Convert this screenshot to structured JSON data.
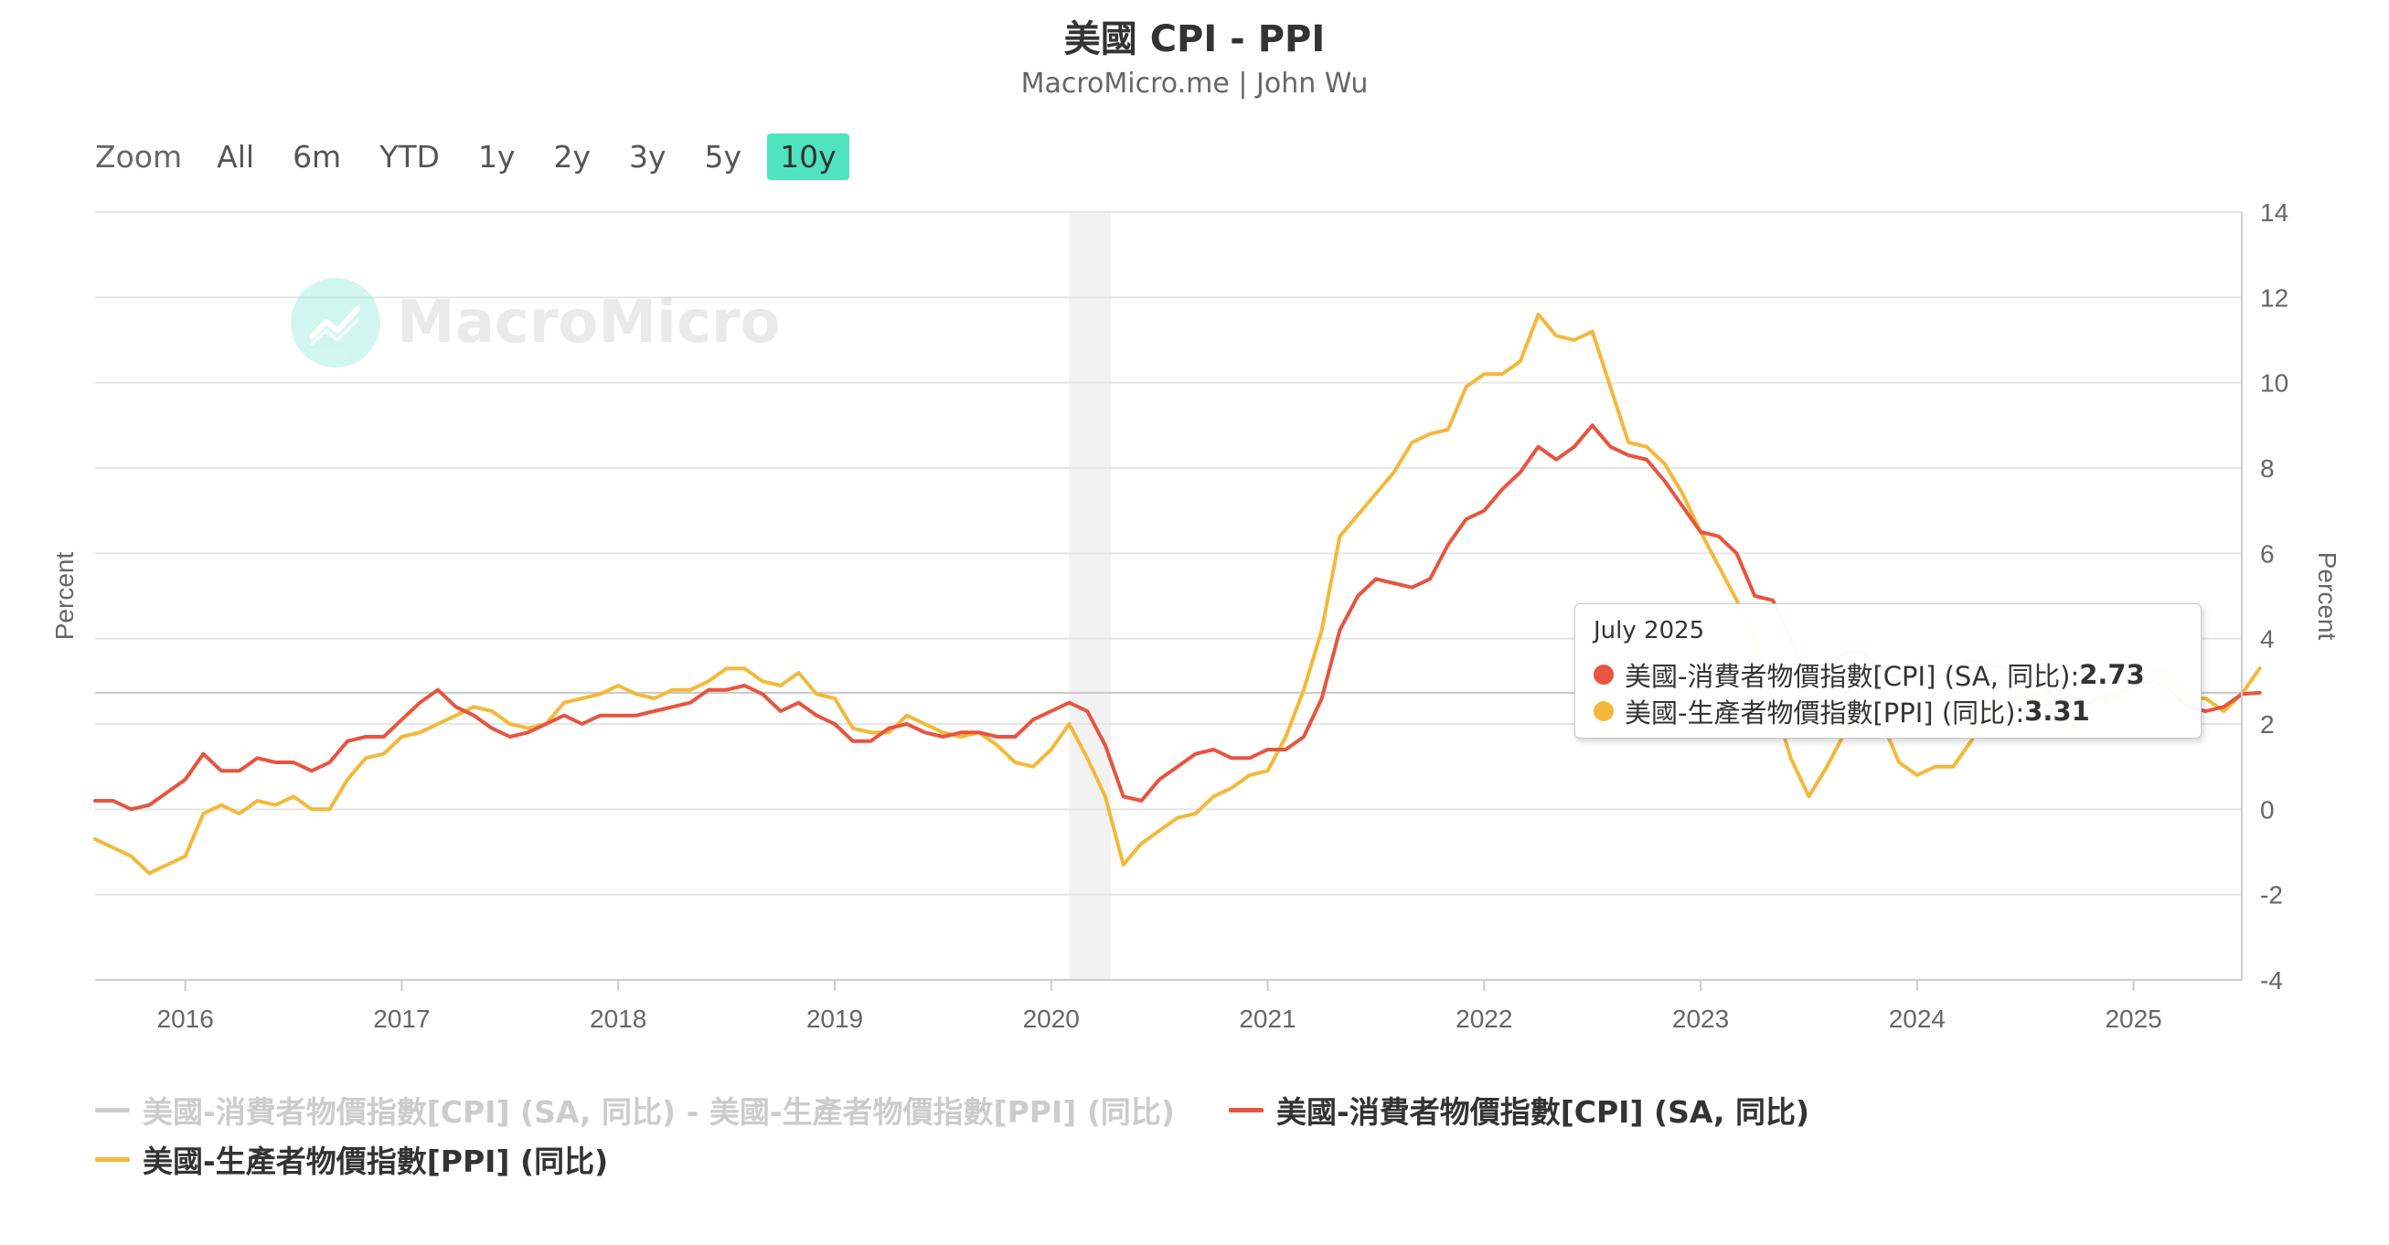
{
  "title": "美國 CPI - PPI",
  "subtitle": "MacroMicro.me | John Wu",
  "zoom": {
    "label": "Zoom",
    "buttons": [
      "All",
      "6m",
      "YTD",
      "1y",
      "2y",
      "3y",
      "5y",
      "10y"
    ],
    "active": "10y"
  },
  "watermark": "MacroMicro",
  "colors": {
    "cpi": "#e8543e",
    "ppi": "#f4b83a",
    "spread": "#cccccc",
    "recession": "#f2f2f2",
    "grid": "#e6e6e6"
  },
  "tooltip": {
    "date": "July 2025",
    "rows": [
      {
        "label": "美國-消費者物價指數[CPI] (SA, 同比): ",
        "value": "2.73",
        "color": "#e8543e"
      },
      {
        "label": "美國-生產者物價指數[PPI] (同比): ",
        "value": "3.31",
        "color": "#f4b83a"
      }
    ]
  },
  "legend": [
    {
      "label": "美國-消費者物價指數[CPI] (SA, 同比) - 美國-生產者物價指數[PPI] (同比)",
      "color": "#cccccc",
      "hidden": true
    },
    {
      "label": "美國-消費者物價指數[CPI] (SA, 同比)",
      "color": "#e8543e",
      "hidden": false
    },
    {
      "label": "美國-生產者物價指數[PPI] (同比)",
      "color": "#f4b83a",
      "hidden": false
    }
  ],
  "chart_data": {
    "type": "line",
    "title": "美國 CPI - PPI",
    "ylabel_left": "Percent",
    "ylabel_right": "Percent",
    "ylim": [
      -4,
      14
    ],
    "yticks": [
      -4,
      -2,
      0,
      2,
      4,
      6,
      8,
      10,
      12,
      14
    ],
    "xlim": [
      "2015-08",
      "2025-07"
    ],
    "xticks": [
      "2016",
      "2017",
      "2018",
      "2019",
      "2020",
      "2021",
      "2022",
      "2023",
      "2024",
      "2025"
    ],
    "recession_band": [
      "2020-02",
      "2020-04"
    ],
    "grid": true,
    "legend_position": "bottom",
    "start": "2015-08",
    "series": [
      {
        "name": "美國-消費者物價指數[CPI] (SA, 同比)",
        "color": "#e8543e",
        "values": [
          0.2,
          0.2,
          0.0,
          0.1,
          0.4,
          0.7,
          1.3,
          0.9,
          0.9,
          1.2,
          1.1,
          1.1,
          0.9,
          1.1,
          1.6,
          1.7,
          1.7,
          2.1,
          2.5,
          2.8,
          2.4,
          2.2,
          1.9,
          1.7,
          1.8,
          2.0,
          2.2,
          2.0,
          2.2,
          2.2,
          2.2,
          2.3,
          2.4,
          2.5,
          2.8,
          2.8,
          2.9,
          2.7,
          2.3,
          2.5,
          2.2,
          2.0,
          1.6,
          1.6,
          1.9,
          2.0,
          1.8,
          1.7,
          1.8,
          1.8,
          1.7,
          1.7,
          2.1,
          2.3,
          2.5,
          2.3,
          1.5,
          0.3,
          0.2,
          0.7,
          1.0,
          1.3,
          1.4,
          1.2,
          1.2,
          1.4,
          1.4,
          1.7,
          2.6,
          4.2,
          5.0,
          5.4,
          5.3,
          5.2,
          5.4,
          6.2,
          6.8,
          7.0,
          7.5,
          7.9,
          8.5,
          8.2,
          8.5,
          9.0,
          8.5,
          8.3,
          8.2,
          7.7,
          7.1,
          6.5,
          6.4,
          6.0,
          5.0,
          4.9,
          4.0,
          3.0,
          3.2,
          3.7,
          3.7,
          3.2,
          3.1,
          3.4,
          3.1,
          3.2,
          3.5,
          3.4,
          3.3,
          3.0,
          2.9,
          2.5,
          2.4,
          2.6,
          2.7,
          2.9,
          3.0,
          2.8,
          2.4,
          2.3,
          2.4,
          2.7,
          2.73
        ]
      },
      {
        "name": "美國-生產者物價指數[PPI] (同比)",
        "color": "#f4b83a",
        "values": [
          -0.7,
          -0.9,
          -1.1,
          -1.5,
          -1.3,
          -1.1,
          -0.1,
          0.1,
          -0.1,
          0.2,
          0.1,
          0.3,
          0.0,
          0.0,
          0.7,
          1.2,
          1.3,
          1.7,
          1.8,
          2.0,
          2.2,
          2.4,
          2.3,
          2.0,
          1.9,
          2.0,
          2.5,
          2.6,
          2.7,
          2.9,
          2.7,
          2.6,
          2.8,
          2.8,
          3.0,
          3.3,
          3.3,
          3.0,
          2.9,
          3.2,
          2.7,
          2.6,
          1.9,
          1.8,
          1.8,
          2.2,
          2.0,
          1.8,
          1.7,
          1.8,
          1.5,
          1.1,
          1.0,
          1.4,
          2.0,
          1.2,
          0.3,
          -1.3,
          -0.8,
          -0.5,
          -0.2,
          -0.1,
          0.3,
          0.5,
          0.8,
          0.9,
          1.7,
          2.8,
          4.2,
          6.4,
          6.9,
          7.4,
          7.9,
          8.6,
          8.8,
          8.9,
          9.9,
          10.2,
          10.2,
          10.5,
          11.6,
          11.1,
          11.0,
          11.2,
          9.9,
          8.6,
          8.5,
          8.1,
          7.4,
          6.5,
          5.7,
          4.9,
          4.0,
          2.6,
          1.2,
          0.3,
          1.0,
          1.8,
          2.3,
          2.1,
          1.1,
          0.8,
          1.0,
          1.0,
          1.6,
          2.4,
          2.4,
          2.7,
          2.7,
          2.1,
          1.9,
          2.5,
          2.6,
          3.0,
          3.3,
          3.2,
          2.6,
          2.6,
          2.3,
          2.7,
          3.31
        ]
      }
    ]
  }
}
